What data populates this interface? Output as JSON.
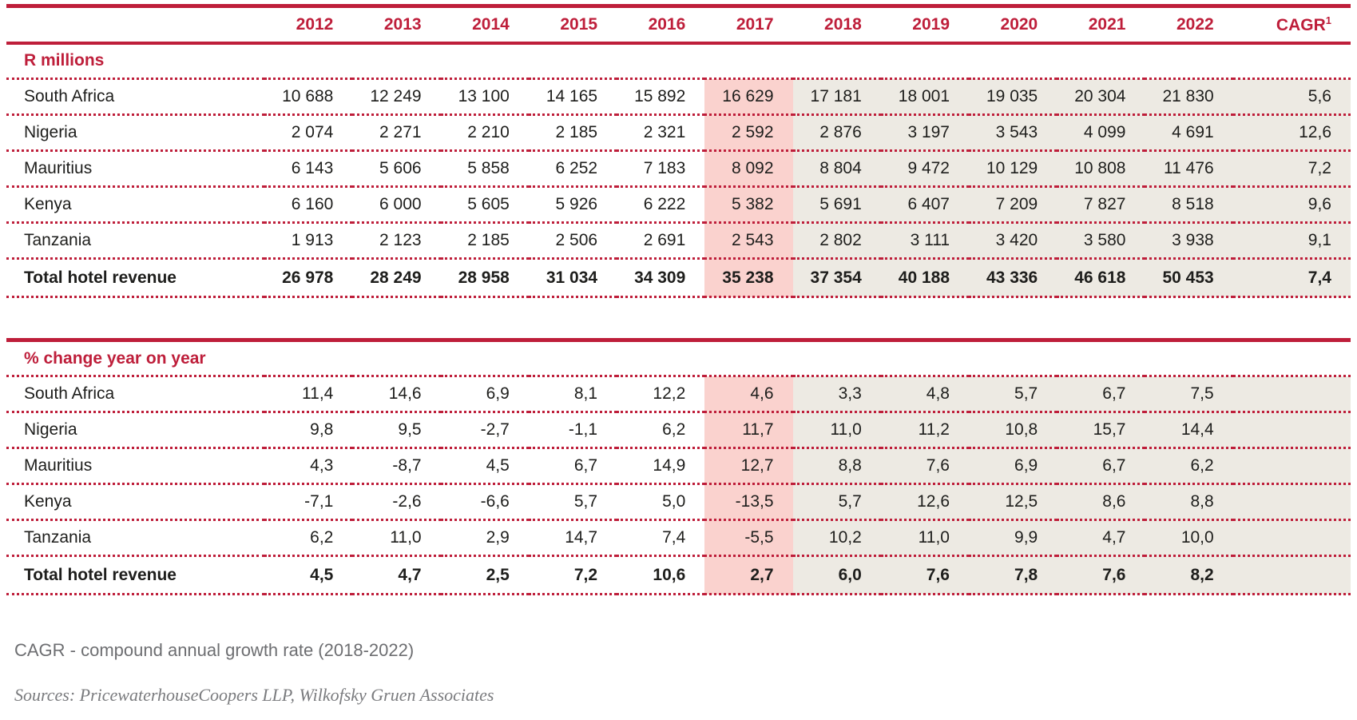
{
  "colors": {
    "accent_red": "#be1e3a",
    "highlight_pink": "#fad2ce",
    "forecast_beige": "#edeae3",
    "body_text": "#1e1e1c",
    "note_gray": "#6d6e71"
  },
  "columns": [
    "2012",
    "2013",
    "2014",
    "2015",
    "2016",
    "2017",
    "2018",
    "2019",
    "2020",
    "2021",
    "2022"
  ],
  "cagr_label": "CAGR",
  "cagr_superscript": "1",
  "highlighted_column": "2017",
  "revenue_table": {
    "section_label": "R millions",
    "rows": [
      {
        "label": "South Africa",
        "values": [
          "10 688",
          "12 249",
          "13 100",
          "14 165",
          "15 892",
          "16 629",
          "17 181",
          "18 001",
          "19 035",
          "20 304",
          "21 830"
        ],
        "cagr": "5,6",
        "bold": false
      },
      {
        "label": "Nigeria",
        "values": [
          "2 074",
          "2 271",
          "2 210",
          "2 185",
          "2 321",
          "2 592",
          "2 876",
          "3 197",
          "3 543",
          "4 099",
          "4 691"
        ],
        "cagr": "12,6",
        "bold": false
      },
      {
        "label": "Mauritius",
        "values": [
          "6 143",
          "5 606",
          "5 858",
          "6 252",
          "7 183",
          "8 092",
          "8 804",
          "9 472",
          "10 129",
          "10 808",
          "11 476"
        ],
        "cagr": "7,2",
        "bold": false
      },
      {
        "label": "Kenya",
        "values": [
          "6 160",
          "6 000",
          "5 605",
          "5 926",
          "6 222",
          "5 382",
          "5 691",
          "6 407",
          "7 209",
          "7 827",
          "8 518"
        ],
        "cagr": "9,6",
        "bold": false
      },
      {
        "label": "Tanzania",
        "values": [
          "1 913",
          "2 123",
          "2 185",
          "2 506",
          "2 691",
          "2 543",
          "2 802",
          "3 111",
          "3 420",
          "3 580",
          "3 938"
        ],
        "cagr": "9,1",
        "bold": false
      },
      {
        "label": "Total hotel revenue",
        "values": [
          "26 978",
          "28 249",
          "28 958",
          "31 034",
          "34 309",
          "35 238",
          "37 354",
          "40 188",
          "43 336",
          "46 618",
          "50 453"
        ],
        "cagr": "7,4",
        "bold": true
      }
    ]
  },
  "change_table": {
    "section_label": "% change year on year",
    "rows": [
      {
        "label": "South Africa",
        "values": [
          "11,4",
          "14,6",
          "6,9",
          "8,1",
          "12,2",
          "4,6",
          "3,3",
          "4,8",
          "5,7",
          "6,7",
          "7,5"
        ],
        "cagr": "",
        "bold": false
      },
      {
        "label": "Nigeria",
        "values": [
          "9,8",
          "9,5",
          "-2,7",
          "-1,1",
          "6,2",
          "11,7",
          "11,0",
          "11,2",
          "10,8",
          "15,7",
          "14,4"
        ],
        "cagr": "",
        "bold": false
      },
      {
        "label": "Mauritius",
        "values": [
          "4,3",
          "-8,7",
          "4,5",
          "6,7",
          "14,9",
          "12,7",
          "8,8",
          "7,6",
          "6,9",
          "6,7",
          "6,2"
        ],
        "cagr": "",
        "bold": false
      },
      {
        "label": "Kenya",
        "values": [
          "-7,1",
          "-2,6",
          "-6,6",
          "5,7",
          "5,0",
          "-13,5",
          "5,7",
          "12,6",
          "12,5",
          "8,6",
          "8,8"
        ],
        "cagr": "",
        "bold": false
      },
      {
        "label": "Tanzania",
        "values": [
          "6,2",
          "11,0",
          "2,9",
          "14,7",
          "7,4",
          "-5,5",
          "10,2",
          "11,0",
          "9,9",
          "4,7",
          "10,0"
        ],
        "cagr": "",
        "bold": false
      },
      {
        "label": "Total hotel revenue",
        "values": [
          "4,5",
          "4,7",
          "2,5",
          "7,2",
          "10,6",
          "2,7",
          "6,0",
          "7,6",
          "7,8",
          "7,6",
          "8,2"
        ],
        "cagr": "",
        "bold": true
      }
    ]
  },
  "footnotes": {
    "cagr_note": "CAGR - compound annual growth rate (2018-2022)",
    "sources": "Sources: PricewaterhouseCoopers LLP, Wilkofsky Gruen Associates"
  }
}
